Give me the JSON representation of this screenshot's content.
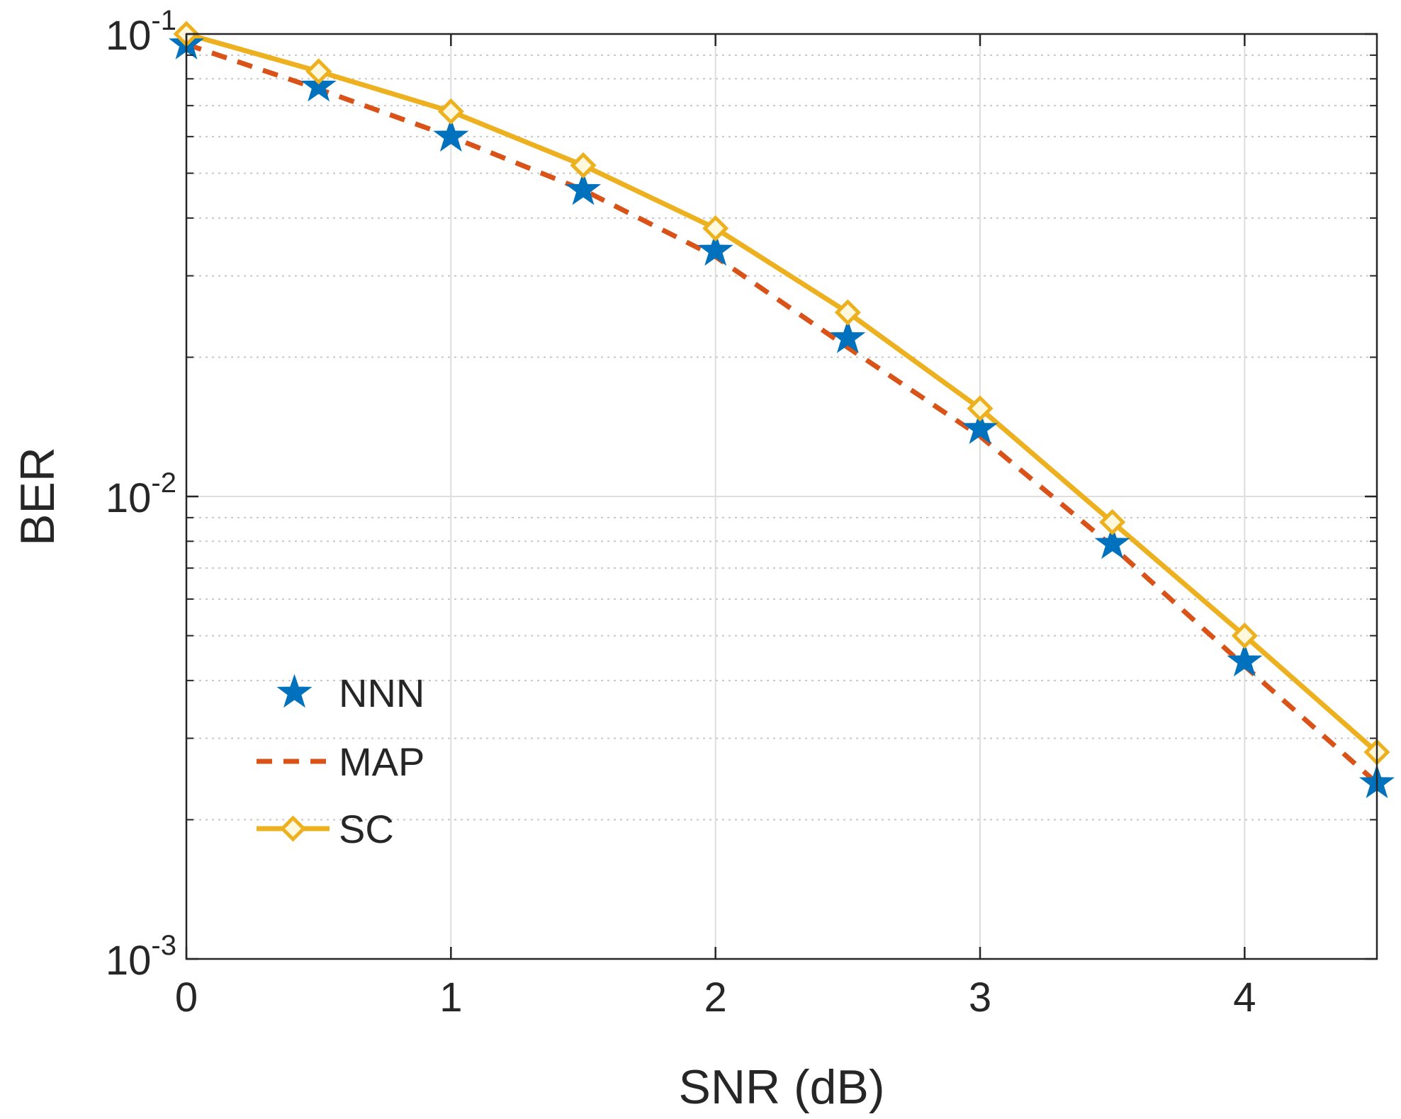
{
  "chart_data": {
    "type": "line",
    "title": "",
    "xlabel": "SNR (dB)",
    "ylabel": "BER",
    "yscale": "log",
    "xlim": [
      0,
      4.5
    ],
    "ylim": [
      0.001,
      0.1
    ],
    "grid": true,
    "x_ticks": [
      0,
      1,
      2,
      3,
      4
    ],
    "x_tick_labels": [
      "0",
      "1",
      "2",
      "3",
      "4"
    ],
    "y_ticks": [
      {
        "value": 0.1,
        "base": "10",
        "exponent": "-1"
      },
      {
        "value": 0.01,
        "base": "10",
        "exponent": "-2"
      },
      {
        "value": 0.001,
        "base": "10",
        "exponent": "-3"
      }
    ],
    "x": [
      0,
      0.5,
      1,
      1.5,
      2,
      2.5,
      3,
      3.5,
      4,
      4.5
    ],
    "series": [
      {
        "name": "NNN",
        "style": "star-markers",
        "color": "#0072BD",
        "values": [
          0.095,
          0.077,
          0.06,
          0.046,
          0.034,
          0.022,
          0.014,
          0.0079,
          0.0044,
          0.0024
        ]
      },
      {
        "name": "MAP",
        "style": "dashed-line",
        "color": "#D95319",
        "values": [
          0.095,
          0.076,
          0.06,
          0.046,
          0.033,
          0.021,
          0.0135,
          0.0078,
          0.0043,
          0.0024
        ]
      },
      {
        "name": "SC",
        "style": "solid-line-diamond",
        "color": "#EDB120",
        "values": [
          0.1,
          0.083,
          0.068,
          0.052,
          0.038,
          0.025,
          0.0155,
          0.0088,
          0.005,
          0.0028
        ]
      }
    ],
    "legend_position": "lower-left"
  }
}
